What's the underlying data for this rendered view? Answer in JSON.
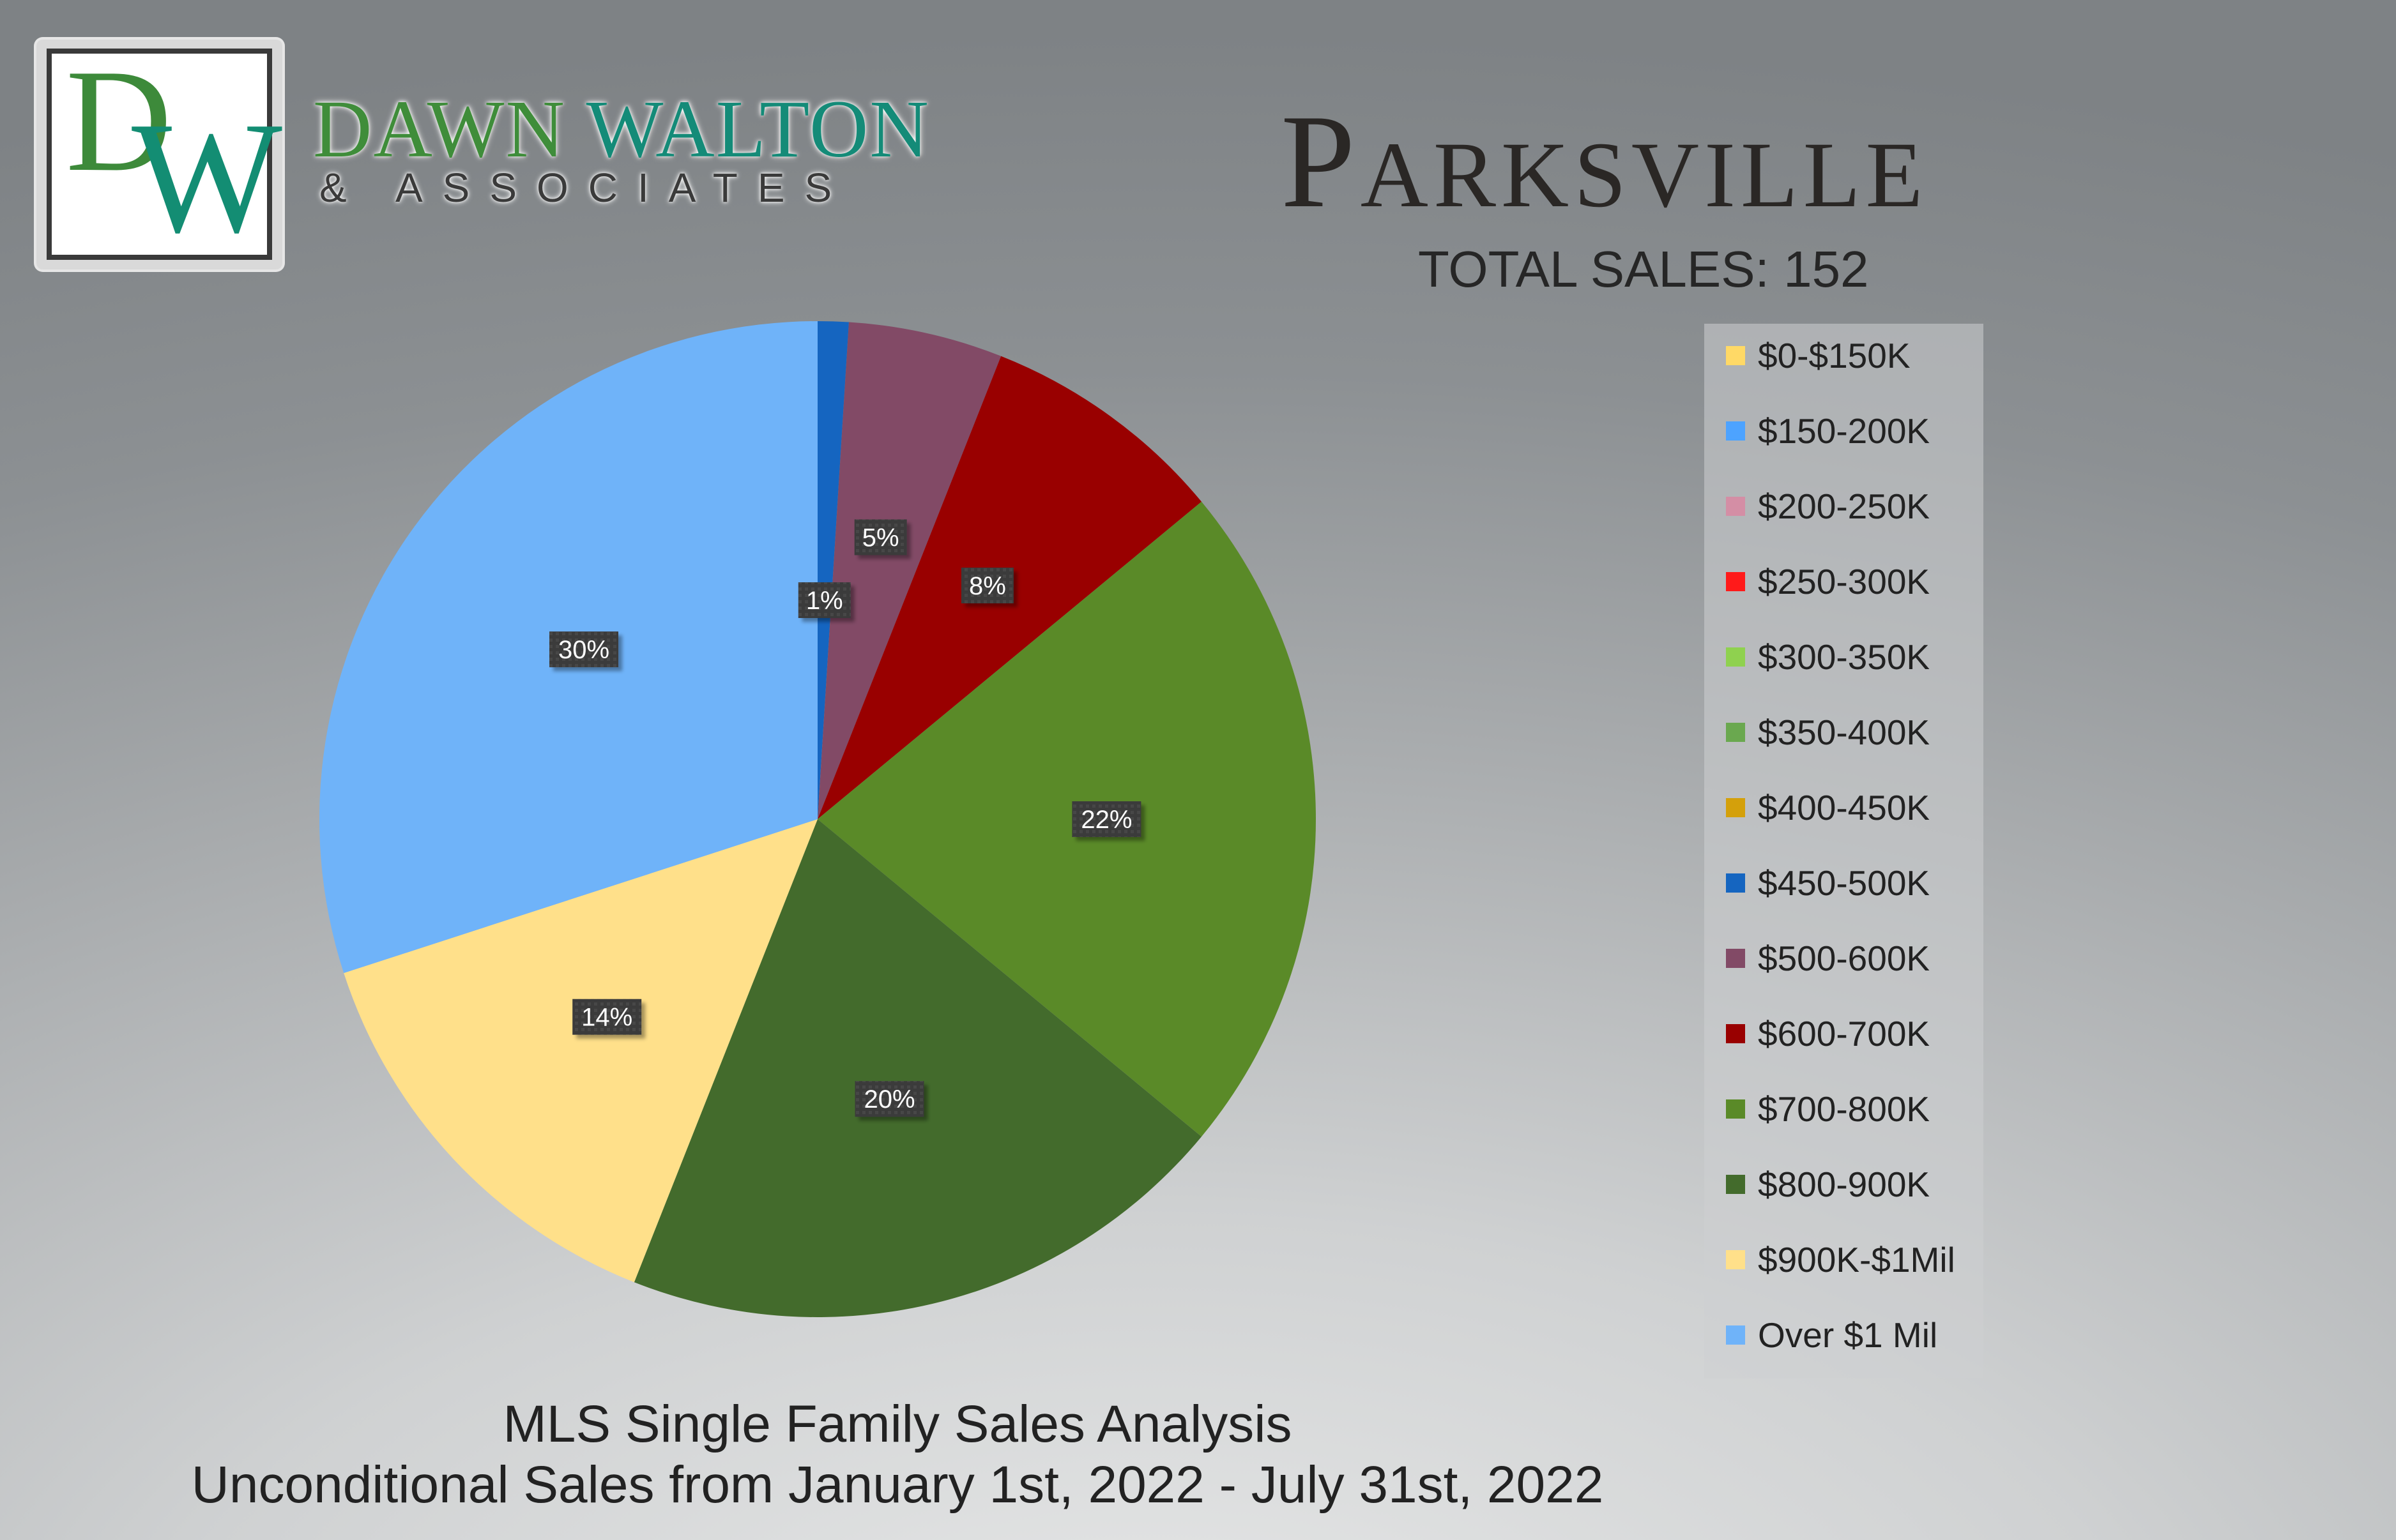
{
  "brand": {
    "monogram_d": "D",
    "monogram_w": "W",
    "name_part1": "DAWN",
    "name_part2": "WALTON",
    "tagline": "& ASSOCIATES"
  },
  "header": {
    "city": "Parksville",
    "total_sales": "TOTAL SALES: 152"
  },
  "footer": {
    "line1": "MLS Single Family Sales Analysis",
    "line2": "Unconditional Sales from January 1st, 2022 - July 31st, 2022"
  },
  "chart_data": {
    "type": "pie",
    "title": "",
    "legend_position": "right",
    "slices": [
      {
        "label": "$0-$150K",
        "value": 0,
        "color": "#ffd966"
      },
      {
        "label": "$150-200K",
        "value": 0,
        "color": "#4da3ff"
      },
      {
        "label": "$200-250K",
        "value": 0,
        "color": "#d48ea5"
      },
      {
        "label": "$250-300K",
        "value": 0,
        "color": "#ff1a1a"
      },
      {
        "label": "$300-350K",
        "value": 0,
        "color": "#8fd14f"
      },
      {
        "label": "$350-400K",
        "value": 0,
        "color": "#6aa84f"
      },
      {
        "label": "$400-450K",
        "value": 0,
        "color": "#d4a00b"
      },
      {
        "label": "$450-500K",
        "value": 1,
        "data_label": "1%",
        "color": "#1565c0"
      },
      {
        "label": "$500-600K",
        "value": 5,
        "data_label": "5%",
        "color": "#824a66"
      },
      {
        "label": "$600-700K",
        "value": 8,
        "data_label": "8%",
        "color": "#990000"
      },
      {
        "label": "$700-800K",
        "value": 22,
        "data_label": "22%",
        "color": "#5a8a28"
      },
      {
        "label": "$800-900K",
        "value": 20,
        "data_label": "20%",
        "color": "#436b2c"
      },
      {
        "label": "$900K-$1Mil",
        "value": 14,
        "data_label": "14%",
        "color": "#ffe08a"
      },
      {
        "label": "Over $1 Mil",
        "value": 30,
        "data_label": "30%",
        "color": "#6fb3f9"
      }
    ]
  }
}
